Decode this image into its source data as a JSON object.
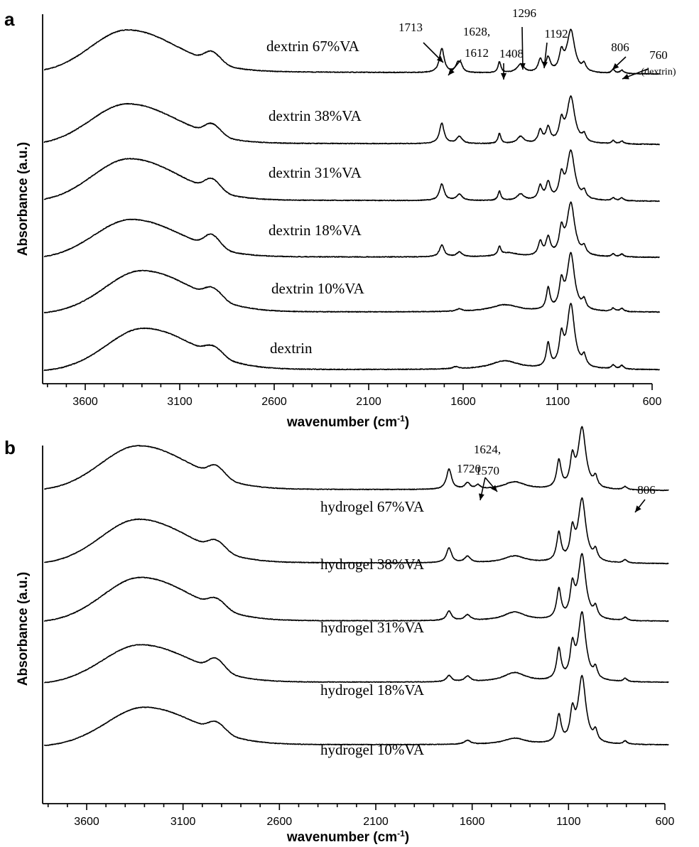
{
  "chart_data": [
    {
      "type": "line",
      "panel": "a",
      "xlabel": "wavenumber (cm",
      "xlabel_sup": "-1",
      "xlabel_close": ")",
      "ylabel": "Absorbance (a.u.)",
      "xlim": [
        4000,
        560
      ],
      "x_reversed": true,
      "xticks": [
        3600,
        3100,
        2600,
        2100,
        1600,
        1100,
        600
      ],
      "yticks": [],
      "grid": false,
      "series": [
        {
          "name": "dextrin 67%VA",
          "spectrum": {
            "base": 0.0,
            "tilt": 0.1,
            "oh": 1.05,
            "oh_center": 3375,
            "ch": 0.25,
            "ch2": 0.08,
            "peaks": [
              [
                1713,
                0.62,
                15
              ],
              [
                1628,
                0.22,
                14
              ],
              [
                1612,
                0.16,
                12
              ],
              [
                1408,
                0.28,
                9
              ],
              [
                1296,
                0.22,
                22
              ],
              [
                1192,
                0.32,
                13
              ],
              [
                1150,
                0.35,
                14
              ],
              [
                1080,
                0.45,
                14
              ],
              [
                1030,
                1.08,
                25
              ],
              [
                960,
                0.18,
                12
              ],
              [
                806,
                0.1,
                10
              ],
              [
                760,
                0.08,
                12
              ]
            ],
            "noise": 0.018,
            "seed": 11
          }
        },
        {
          "name": "dextrin 38%VA",
          "spectrum": {
            "base": 0.0,
            "tilt": 0.05,
            "oh": 1.0,
            "oh_center": 3375,
            "ch": 0.25,
            "ch2": 0.08,
            "peaks": [
              [
                1713,
                0.52,
                15
              ],
              [
                1620,
                0.18,
                18
              ],
              [
                1408,
                0.26,
                9
              ],
              [
                1296,
                0.18,
                22
              ],
              [
                1192,
                0.32,
                13
              ],
              [
                1150,
                0.38,
                14
              ],
              [
                1080,
                0.5,
                14
              ],
              [
                1030,
                1.18,
                25
              ],
              [
                960,
                0.18,
                12
              ],
              [
                806,
                0.08,
                10
              ],
              [
                760,
                0.07,
                12
              ]
            ],
            "noise": 0.018,
            "seed": 23
          }
        },
        {
          "name": "dextrin 31%VA",
          "spectrum": {
            "base": 0.0,
            "tilt": 0.05,
            "oh": 1.05,
            "oh_center": 3365,
            "ch": 0.27,
            "ch2": 0.08,
            "peaks": [
              [
                1713,
                0.42,
                15
              ],
              [
                1620,
                0.16,
                18
              ],
              [
                1408,
                0.24,
                9
              ],
              [
                1296,
                0.16,
                22
              ],
              [
                1192,
                0.35,
                13
              ],
              [
                1150,
                0.42,
                14
              ],
              [
                1080,
                0.55,
                14
              ],
              [
                1030,
                1.25,
                25
              ],
              [
                960,
                0.18,
                12
              ],
              [
                806,
                0.07,
                10
              ],
              [
                760,
                0.07,
                12
              ]
            ],
            "noise": 0.018,
            "seed": 37
          }
        },
        {
          "name": "dextrin 18%VA",
          "spectrum": {
            "base": 0.0,
            "tilt": 0.03,
            "oh": 0.95,
            "oh_center": 3355,
            "ch": 0.3,
            "ch2": 0.08,
            "peaks": [
              [
                1713,
                0.3,
                15
              ],
              [
                1620,
                0.12,
                18
              ],
              [
                1408,
                0.22,
                9
              ],
              [
                1360,
                0.1,
                60
              ],
              [
                1192,
                0.35,
                13
              ],
              [
                1150,
                0.45,
                14
              ],
              [
                1080,
                0.6,
                14
              ],
              [
                1030,
                1.35,
                25
              ],
              [
                960,
                0.18,
                12
              ],
              [
                806,
                0.07,
                10
              ],
              [
                760,
                0.07,
                12
              ]
            ],
            "noise": 0.018,
            "seed": 41
          }
        },
        {
          "name": "dextrin 10%VA",
          "spectrum": {
            "base": 0.0,
            "tilt": 0.02,
            "oh": 1.05,
            "oh_center": 3300,
            "ch": 0.22,
            "ch2": 0.1,
            "peaks": [
              [
                1620,
                0.06,
                18
              ],
              [
                1380,
                0.18,
                90
              ],
              [
                1150,
                0.55,
                12
              ],
              [
                1080,
                0.65,
                14
              ],
              [
                1030,
                1.45,
                24
              ],
              [
                960,
                0.22,
                12
              ],
              [
                806,
                0.08,
                12
              ],
              [
                760,
                0.08,
                12
              ]
            ],
            "noise": 0.018,
            "seed": 53
          }
        },
        {
          "name": "dextrin",
          "spectrum": {
            "base": 0.0,
            "tilt": 0.02,
            "oh": 1.05,
            "oh_center": 3290,
            "ch": 0.18,
            "ch2": 0.1,
            "peaks": [
              [
                1640,
                0.05,
                20
              ],
              [
                1380,
                0.22,
                90
              ],
              [
                1150,
                0.6,
                12
              ],
              [
                1080,
                0.72,
                14
              ],
              [
                1030,
                1.62,
                24
              ],
              [
                960,
                0.26,
                12
              ],
              [
                806,
                0.1,
                12
              ],
              [
                760,
                0.09,
                12
              ]
            ],
            "noise": 0.018,
            "seed": 67
          }
        }
      ],
      "annotations": [
        {
          "label": "1713",
          "x": 1713
        },
        {
          "label": "1628,",
          "label2": "1612",
          "x": 1628
        },
        {
          "label": "1408",
          "x": 1408
        },
        {
          "label": "1296",
          "x": 1296
        },
        {
          "label": "1192",
          "x": 1192
        },
        {
          "label": "806",
          "x": 806
        },
        {
          "label": "760",
          "sub": "(dextrin)",
          "x": 760
        }
      ]
    },
    {
      "type": "line",
      "panel": "b",
      "xlabel": "wavenumber (cm",
      "xlabel_sup": "-1",
      "xlabel_close": ")",
      "ylabel": "Absorbance (a.u.)",
      "xlim": [
        4000,
        580
      ],
      "x_reversed": true,
      "xticks": [
        3600,
        3100,
        2600,
        2100,
        1600,
        1100,
        600
      ],
      "yticks": [],
      "grid": false,
      "series": [
        {
          "name": "hydrogel 67%VA",
          "spectrum": {
            "base": 0.0,
            "tilt": 0.06,
            "oh": 1.1,
            "oh_center": 3330,
            "ch": 0.25,
            "ch2": 0.08,
            "peaks": [
              [
                1720,
                0.52,
                16
              ],
              [
                1624,
                0.16,
                16
              ],
              [
                1570,
                0.1,
                14
              ],
              [
                1380,
                0.2,
                70
              ],
              [
                1150,
                0.7,
                14
              ],
              [
                1080,
                0.7,
                14
              ],
              [
                1030,
                1.55,
                24
              ],
              [
                960,
                0.25,
                12
              ],
              [
                806,
                0.08,
                12
              ]
            ],
            "noise": 0.016,
            "seed": 71
          }
        },
        {
          "name": "hydrogel 38%VA",
          "spectrum": {
            "base": 0.0,
            "tilt": 0.05,
            "oh": 1.1,
            "oh_center": 3330,
            "ch": 0.22,
            "ch2": 0.08,
            "peaks": [
              [
                1720,
                0.38,
                16
              ],
              [
                1624,
                0.16,
                18
              ],
              [
                1380,
                0.18,
                70
              ],
              [
                1150,
                0.72,
                14
              ],
              [
                1080,
                0.72,
                14
              ],
              [
                1030,
                1.6,
                24
              ],
              [
                960,
                0.25,
                12
              ],
              [
                806,
                0.08,
                12
              ]
            ],
            "noise": 0.016,
            "seed": 83
          }
        },
        {
          "name": "hydrogel 31%VA",
          "spectrum": {
            "base": 0.0,
            "tilt": 0.03,
            "oh": 1.1,
            "oh_center": 3320,
            "ch": 0.2,
            "ch2": 0.08,
            "peaks": [
              [
                1720,
                0.24,
                16
              ],
              [
                1624,
                0.14,
                18
              ],
              [
                1380,
                0.22,
                70
              ],
              [
                1150,
                0.75,
                14
              ],
              [
                1080,
                0.75,
                14
              ],
              [
                1030,
                1.65,
                24
              ],
              [
                960,
                0.26,
                12
              ],
              [
                806,
                0.08,
                12
              ]
            ],
            "noise": 0.016,
            "seed": 97
          }
        },
        {
          "name": "hydrogel 18%VA",
          "spectrum": {
            "base": 0.0,
            "tilt": 0.02,
            "oh": 0.95,
            "oh_center": 3320,
            "ch": 0.28,
            "ch2": 0.08,
            "peaks": [
              [
                1720,
                0.16,
                16
              ],
              [
                1624,
                0.14,
                18
              ],
              [
                1380,
                0.24,
                70
              ],
              [
                1150,
                0.78,
                14
              ],
              [
                1080,
                0.78,
                14
              ],
              [
                1030,
                1.72,
                24
              ],
              [
                960,
                0.26,
                12
              ],
              [
                806,
                0.08,
                12
              ]
            ],
            "noise": 0.016,
            "seed": 101
          }
        },
        {
          "name": "hydrogel 10%VA",
          "spectrum": {
            "base": 0.0,
            "tilt": 0.02,
            "oh": 0.95,
            "oh_center": 3300,
            "ch": 0.22,
            "ch2": 0.08,
            "peaks": [
              [
                1624,
                0.1,
                20
              ],
              [
                1380,
                0.16,
                70
              ],
              [
                1150,
                0.7,
                14
              ],
              [
                1080,
                0.72,
                14
              ],
              [
                1030,
                1.7,
                24
              ],
              [
                960,
                0.26,
                12
              ],
              [
                806,
                0.08,
                12
              ]
            ],
            "noise": 0.016,
            "seed": 113
          }
        }
      ],
      "annotations": [
        {
          "label": "1720",
          "x": 1720
        },
        {
          "label": "1624,",
          "label2": "1570",
          "x": 1624
        },
        {
          "label": "806",
          "x": 806
        }
      ]
    }
  ]
}
